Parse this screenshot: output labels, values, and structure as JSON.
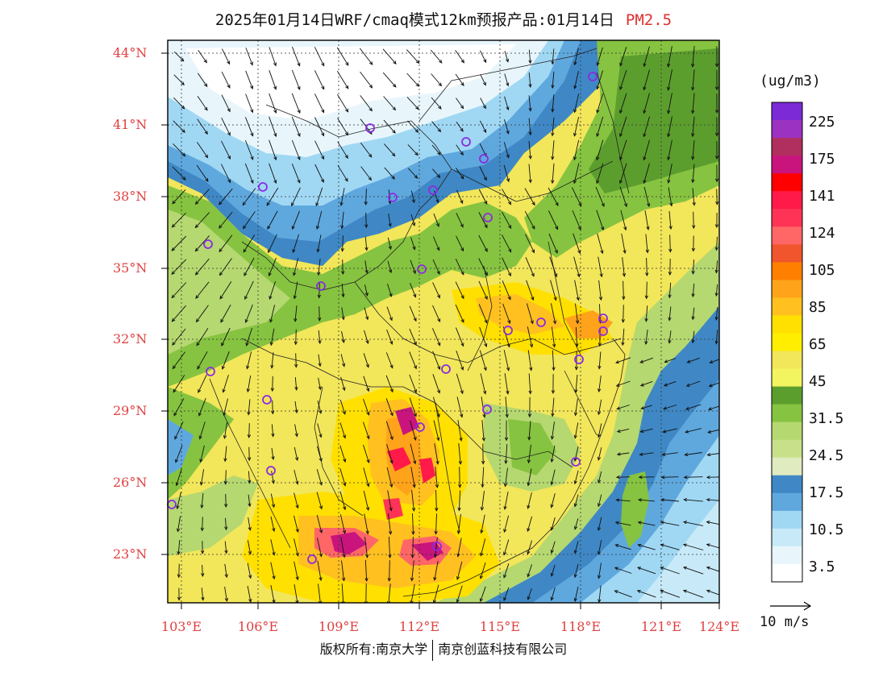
{
  "title": {
    "main": "2025年01月14日WRF/cmaq模式12km预报产品:01月14日",
    "product": "PM2.5"
  },
  "latitude_labels": [
    "44°N",
    "41°N",
    "38°N",
    "35°N",
    "32°N",
    "29°N",
    "26°N",
    "23°N"
  ],
  "longitude_labels": [
    "103°E",
    "106°E",
    "109°E",
    "112°E",
    "115°E",
    "118°E",
    "121°E",
    "124°E"
  ],
  "colorbar": {
    "unit": "(ug/m3)",
    "labels": [
      "225",
      "175",
      "141",
      "124",
      "105",
      "85",
      "65",
      "45",
      "31.5",
      "24.5",
      "17.5",
      "10.5",
      "3.5"
    ],
    "colors": [
      "#7b2ad6",
      "#9c32c2",
      "#b02f5e",
      "#c8147c",
      "#ff0000",
      "#ff1a4a",
      "#ff3355",
      "#ff6666",
      "#f0552e",
      "#ff7f00",
      "#ffa31a",
      "#ffc020",
      "#ffe000",
      "#ffee00",
      "#f2e65a",
      "#f2f560",
      "#5c9e2e",
      "#86c340",
      "#b5d870",
      "#c8e08a",
      "#e0ebc0",
      "#3f88c5",
      "#5fa8de",
      "#a0d8f4",
      "#c8eaf8",
      "#e8f6fc",
      "#ffffff"
    ]
  },
  "wind_scale": {
    "label": "10 m/s"
  },
  "footer": {
    "left": "版权所有:南京大学",
    "right": "南京创蓝科技有限公司"
  },
  "icons": [
    "city-marker-icon",
    "wind-vector-icon"
  ]
}
